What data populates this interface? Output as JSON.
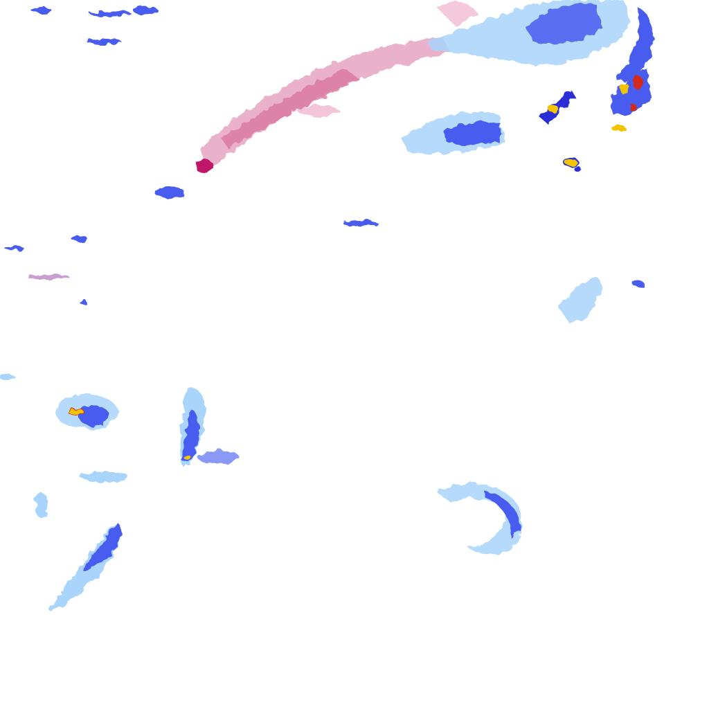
{
  "map": {
    "layer": "precipitation",
    "colors": {
      "background": "#ffffff",
      "light_rain": "#a9d4fb",
      "moderate_rain": "#4a5cf0",
      "heavy_rain": "#2a2fd6",
      "intense": "#f5c400",
      "extreme": "#d42a1a",
      "mixed_snow": "#e08ab0",
      "mixed_heavy": "#c0186a"
    }
  }
}
